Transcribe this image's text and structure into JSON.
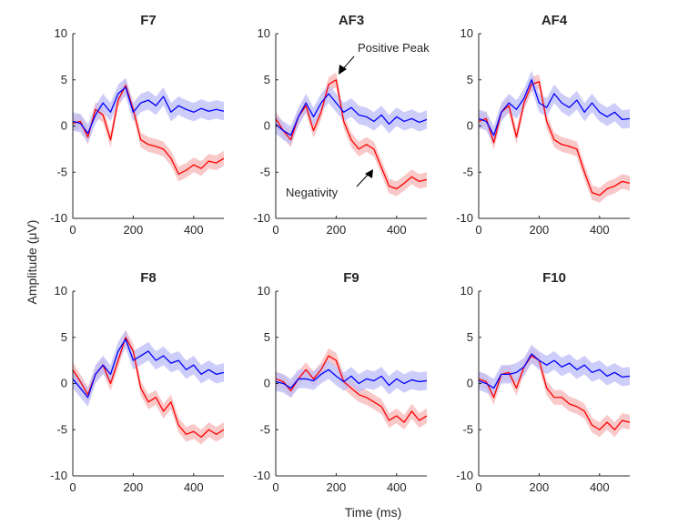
{
  "figure": {
    "ylabel": "Amplitude (μV)",
    "xlabel": "Time (ms)"
  },
  "colors": {
    "red_line": "#ff0000",
    "red_band": "#f7b7b7",
    "blue_line": "#0000ff",
    "blue_band": "#bcbcf7",
    "axis": "#262626"
  },
  "annotations": {
    "positive_peak": "Positive Peak",
    "negativity": "Negativity"
  },
  "chart_data": [
    {
      "type": "line",
      "title": "F7",
      "xlim": [
        0,
        500
      ],
      "ylim": [
        -10,
        10
      ],
      "xticks": [
        0,
        200,
        400
      ],
      "yticks": [
        10,
        5,
        0,
        -5,
        -10
      ],
      "x": [
        0,
        25,
        50,
        75,
        100,
        125,
        150,
        175,
        200,
        225,
        250,
        275,
        300,
        325,
        350,
        375,
        400,
        425,
        450,
        475,
        500
      ],
      "series": [
        {
          "name": "red",
          "band": 0.8,
          "values": [
            0.3,
            0.5,
            -1.2,
            1.8,
            1.2,
            -1.5,
            2.8,
            4.4,
            1.8,
            -1.5,
            -2.0,
            -2.2,
            -2.5,
            -3.5,
            -5.2,
            -4.8,
            -4.2,
            -4.6,
            -3.8,
            -4.0,
            -3.5
          ]
        },
        {
          "name": "blue",
          "band": 1.0,
          "values": [
            0.5,
            0.3,
            -0.8,
            1.2,
            2.5,
            1.5,
            3.5,
            4.2,
            1.5,
            2.5,
            2.8,
            2.2,
            3.2,
            1.5,
            2.2,
            1.8,
            1.5,
            1.9,
            1.6,
            1.8,
            1.6
          ]
        }
      ]
    },
    {
      "type": "line",
      "title": "AF3",
      "xlim": [
        0,
        500
      ],
      "ylim": [
        -10,
        10
      ],
      "xticks": [
        0,
        200,
        400
      ],
      "yticks": [
        10,
        5,
        0,
        -5,
        -10
      ],
      "x": [
        0,
        25,
        50,
        75,
        100,
        125,
        150,
        175,
        200,
        225,
        250,
        275,
        300,
        325,
        350,
        375,
        400,
        425,
        450,
        475,
        500
      ],
      "series": [
        {
          "name": "red",
          "band": 0.8,
          "values": [
            0.8,
            -0.5,
            -1.5,
            1.0,
            2.2,
            -0.5,
            1.5,
            4.5,
            5.0,
            0.5,
            -1.5,
            -2.5,
            -2.0,
            -2.5,
            -4.5,
            -6.5,
            -6.8,
            -6.2,
            -5.5,
            -6.0,
            -5.8
          ]
        },
        {
          "name": "blue",
          "band": 1.0,
          "values": [
            0.2,
            -0.5,
            -1.0,
            1.0,
            2.5,
            1.0,
            2.5,
            3.5,
            2.5,
            1.5,
            2.0,
            1.2,
            1.0,
            0.5,
            1.2,
            0.2,
            1.0,
            0.5,
            0.8,
            0.4,
            0.7
          ]
        }
      ]
    },
    {
      "type": "line",
      "title": "AF4",
      "xlim": [
        0,
        500
      ],
      "ylim": [
        -10,
        10
      ],
      "xticks": [
        0,
        200,
        400
      ],
      "yticks": [
        10,
        5,
        0,
        -5,
        -10
      ],
      "x": [
        0,
        25,
        50,
        75,
        100,
        125,
        150,
        175,
        200,
        225,
        250,
        275,
        300,
        325,
        350,
        375,
        400,
        425,
        450,
        475,
        500
      ],
      "series": [
        {
          "name": "red",
          "band": 0.8,
          "values": [
            0.5,
            0.8,
            -1.8,
            1.5,
            2.2,
            -1.2,
            2.5,
            4.5,
            4.8,
            0.5,
            -1.5,
            -2.0,
            -2.2,
            -2.5,
            -5.0,
            -7.2,
            -7.5,
            -6.8,
            -6.5,
            -6.0,
            -6.2
          ]
        },
        {
          "name": "blue",
          "band": 1.0,
          "values": [
            0.8,
            0.5,
            -1.0,
            1.5,
            2.5,
            1.8,
            3.0,
            5.0,
            2.5,
            2.0,
            3.5,
            2.5,
            2.0,
            2.8,
            1.5,
            2.5,
            1.5,
            1.0,
            1.5,
            0.7,
            0.8
          ]
        }
      ]
    },
    {
      "type": "line",
      "title": "F8",
      "xlim": [
        0,
        500
      ],
      "ylim": [
        -10,
        10
      ],
      "xticks": [
        0,
        200,
        400
      ],
      "yticks": [
        10,
        5,
        0,
        -5,
        -10
      ],
      "x": [
        0,
        25,
        50,
        75,
        100,
        125,
        150,
        175,
        200,
        225,
        250,
        275,
        300,
        325,
        350,
        375,
        400,
        425,
        450,
        475,
        500
      ],
      "series": [
        {
          "name": "red",
          "band": 0.8,
          "values": [
            1.5,
            0.2,
            -1.2,
            1.0,
            2.0,
            0.0,
            2.5,
            5.0,
            3.5,
            -0.5,
            -2.0,
            -1.5,
            -3.0,
            -2.0,
            -4.5,
            -5.5,
            -5.2,
            -5.8,
            -5.0,
            -5.5,
            -5.0
          ]
        },
        {
          "name": "blue",
          "band": 1.0,
          "values": [
            0.5,
            -0.5,
            -1.5,
            1.0,
            2.0,
            1.0,
            3.5,
            4.8,
            2.5,
            3.0,
            3.5,
            2.5,
            3.0,
            2.2,
            2.5,
            1.5,
            2.0,
            1.0,
            1.5,
            1.0,
            1.2
          ]
        }
      ]
    },
    {
      "type": "line",
      "title": "F9",
      "xlim": [
        0,
        500
      ],
      "ylim": [
        -10,
        10
      ],
      "xticks": [
        0,
        200,
        400
      ],
      "yticks": [
        10,
        5,
        0,
        -5,
        -10
      ],
      "x": [
        0,
        25,
        50,
        75,
        100,
        125,
        150,
        175,
        200,
        225,
        250,
        275,
        300,
        325,
        350,
        375,
        400,
        425,
        450,
        475,
        500
      ],
      "series": [
        {
          "name": "red",
          "band": 0.8,
          "values": [
            0.5,
            0.2,
            -0.8,
            0.5,
            1.5,
            0.5,
            1.5,
            3.0,
            2.5,
            0.2,
            -0.5,
            -1.2,
            -1.5,
            -2.0,
            -2.5,
            -4.0,
            -3.5,
            -4.2,
            -3.0,
            -4.0,
            -3.5
          ]
        },
        {
          "name": "blue",
          "band": 1.0,
          "values": [
            0.2,
            0.0,
            -0.5,
            0.5,
            0.5,
            0.3,
            1.0,
            1.5,
            0.8,
            0.2,
            0.8,
            0.0,
            0.5,
            0.3,
            0.8,
            -0.2,
            0.5,
            0.0,
            0.4,
            0.2,
            0.3
          ]
        }
      ]
    },
    {
      "type": "line",
      "title": "F10",
      "xlim": [
        0,
        500
      ],
      "ylim": [
        -10,
        10
      ],
      "xticks": [
        0,
        200,
        400
      ],
      "yticks": [
        10,
        5,
        0,
        -5,
        -10
      ],
      "x": [
        0,
        25,
        50,
        75,
        100,
        125,
        150,
        175,
        200,
        225,
        250,
        275,
        300,
        325,
        350,
        375,
        400,
        425,
        450,
        475,
        500
      ],
      "series": [
        {
          "name": "red",
          "band": 0.8,
          "values": [
            0.5,
            0.2,
            -1.5,
            1.0,
            1.2,
            -0.5,
            1.8,
            3.0,
            2.5,
            -0.5,
            -1.5,
            -1.5,
            -2.2,
            -2.5,
            -3.0,
            -4.5,
            -5.0,
            -4.2,
            -5.0,
            -4.0,
            -4.2
          ]
        },
        {
          "name": "blue",
          "band": 1.0,
          "values": [
            0.3,
            0.0,
            -0.5,
            1.0,
            1.0,
            1.2,
            1.8,
            3.2,
            2.5,
            2.0,
            2.5,
            1.8,
            2.2,
            1.5,
            2.0,
            1.2,
            1.5,
            0.8,
            1.2,
            0.7,
            0.8
          ]
        }
      ]
    }
  ]
}
